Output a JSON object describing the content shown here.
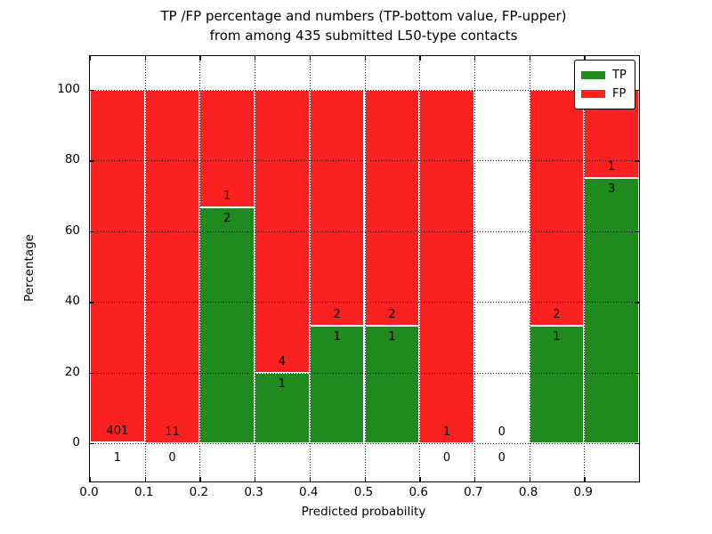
{
  "figure": {
    "title_line1": "TP /FP percentage and numbers (TP-bottom value, FP-upper)",
    "title_line2": "from among 435 submitted L50-type contacts"
  },
  "axes": {
    "ylabel": "Percentage",
    "xlabel": "Predicted probability",
    "ytick_labels": [
      "0",
      "20",
      "40",
      "60",
      "80",
      "100"
    ],
    "xtick_labels": [
      "0.0",
      "0.1",
      "0.2",
      "0.3",
      "0.4",
      "0.5",
      "0.6",
      "0.7",
      "0.8",
      "0.9"
    ]
  },
  "legend": {
    "items": [
      {
        "label": "TP",
        "color": "#1f8b1f"
      },
      {
        "label": "FP",
        "color": "#fb2121"
      }
    ]
  },
  "chart_data": {
    "type": "bar",
    "stacked": true,
    "title": "TP /FP percentage and numbers (TP-bottom value, FP-upper) from among 435 submitted L50-type contacts",
    "xlabel": "Predicted probability",
    "ylabel": "Percentage",
    "xlim": [
      0.0,
      1.0
    ],
    "ylim": [
      -11,
      110
    ],
    "yticks": [
      0,
      20,
      40,
      60,
      80,
      100
    ],
    "xticks": [
      0.0,
      0.1,
      0.2,
      0.3,
      0.4,
      0.5,
      0.6,
      0.7,
      0.8,
      0.9
    ],
    "grid": true,
    "grid_style": "dotted",
    "legend_position": "upper right",
    "colors": {
      "tp": "#1f8b1f",
      "fp": "#fb2121",
      "bar_edge": "#ffffff"
    },
    "series_note": "Each bin stacked to 100%: TP (green, bottom) + FP (red, top). Labels show raw counts: TP below / FP above the boundary.",
    "bins": [
      {
        "range": [
          0.0,
          0.1
        ],
        "tp_count": 1,
        "fp_count": 401,
        "tp_pct": 0.25,
        "fp_pct": 99.75
      },
      {
        "range": [
          0.1,
          0.2
        ],
        "tp_count": 0,
        "fp_count": 11,
        "tp_pct": 0,
        "fp_pct": 100
      },
      {
        "range": [
          0.2,
          0.3
        ],
        "tp_count": 2,
        "fp_count": 1,
        "tp_pct": 66.67,
        "fp_pct": 33.33
      },
      {
        "range": [
          0.3,
          0.4
        ],
        "tp_count": 1,
        "fp_count": 4,
        "tp_pct": 20,
        "fp_pct": 80
      },
      {
        "range": [
          0.4,
          0.5
        ],
        "tp_count": 1,
        "fp_count": 2,
        "tp_pct": 33.33,
        "fp_pct": 66.67
      },
      {
        "range": [
          0.5,
          0.6
        ],
        "tp_count": 1,
        "fp_count": 2,
        "tp_pct": 33.33,
        "fp_pct": 66.67
      },
      {
        "range": [
          0.6,
          0.7
        ],
        "tp_count": 0,
        "fp_count": 1,
        "tp_pct": 0,
        "fp_pct": 100
      },
      {
        "range": [
          0.7,
          0.8
        ],
        "tp_count": 0,
        "fp_count": 0,
        "tp_pct": 0,
        "fp_pct": 0
      },
      {
        "range": [
          0.8,
          0.9
        ],
        "tp_count": 1,
        "fp_count": 2,
        "tp_pct": 33.33,
        "fp_pct": 66.67
      },
      {
        "range": [
          0.9,
          1.0
        ],
        "tp_count": 3,
        "fp_count": 1,
        "tp_pct": 75,
        "fp_pct": 25
      }
    ]
  }
}
